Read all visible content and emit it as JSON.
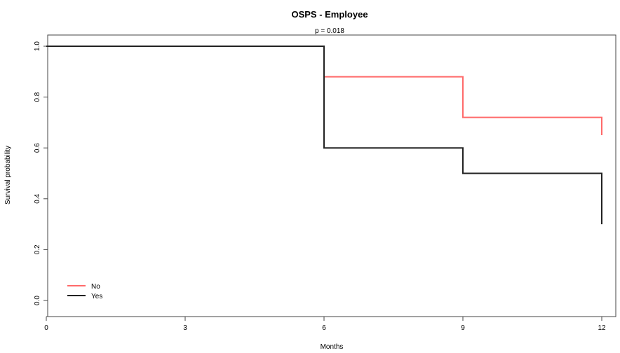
{
  "chart_data": {
    "type": "line",
    "step": true,
    "title": "OSPS - Employee",
    "subtitle": "p = 0.018",
    "xlabel": "Months",
    "ylabel": "Survival probability",
    "xlim": [
      0,
      12
    ],
    "ylim": [
      0,
      1
    ],
    "xticks": [
      0,
      3,
      6,
      9,
      12
    ],
    "xtick_labels": [
      "0",
      "3",
      "6",
      "9",
      "12"
    ],
    "yticks": [
      0,
      0.2,
      0.4,
      0.6,
      0.8,
      1.0
    ],
    "ytick_labels": [
      "0.0",
      "0.2",
      "0.4",
      "0.6",
      "0.8",
      "1.0"
    ],
    "grid": false,
    "legend_position": "bottom-left",
    "series": [
      {
        "name": "No",
        "color": "#ff6a6a",
        "points": [
          [
            0,
            1.0
          ],
          [
            6,
            1.0
          ],
          [
            6,
            0.88
          ],
          [
            9,
            0.88
          ],
          [
            9,
            0.72
          ],
          [
            12,
            0.72
          ],
          [
            12,
            0.65
          ]
        ]
      },
      {
        "name": "Yes",
        "color": "#222222",
        "points": [
          [
            0,
            1.0
          ],
          [
            6,
            1.0
          ],
          [
            6,
            0.6
          ],
          [
            9,
            0.6
          ],
          [
            9,
            0.5
          ],
          [
            12,
            0.5
          ],
          [
            12,
            0.3
          ]
        ]
      }
    ]
  }
}
